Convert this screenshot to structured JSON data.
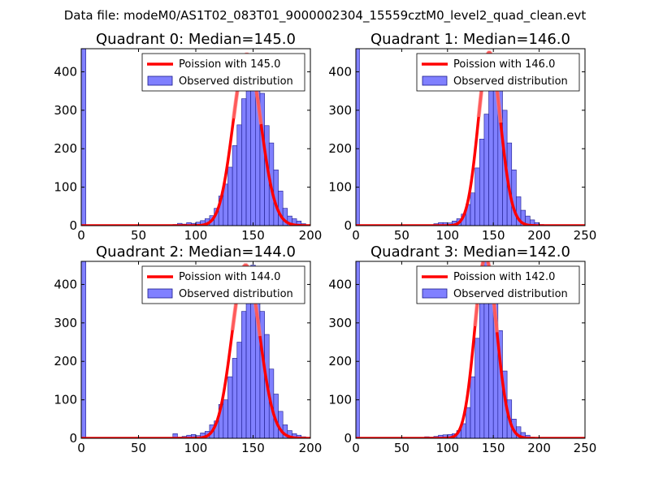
{
  "figure": {
    "suptitle": "Data file: modeM0/AS1T02_083T01_9000002304_15559cztM0_level2_quad_clean.evt"
  },
  "colors": {
    "bar_fill": "#8080ff",
    "bar_edge": "#1a1a8c",
    "curve": "#ff0000",
    "curve_peak_fade": "#ff8080",
    "frame": "#000000"
  },
  "chart_data": [
    {
      "type": "bar",
      "title": "Quadrant 0: Median=145.0",
      "xlim": [
        0,
        200
      ],
      "ylim": [
        0,
        460
      ],
      "xticks": [
        "0",
        "50",
        "100",
        "150",
        "200"
      ],
      "yticks": [
        "0",
        "100",
        "200",
        "300",
        "400"
      ],
      "legend": {
        "line": "Poission with 145.0",
        "bar": "Observed distribution",
        "location": "upper right"
      },
      "poisson_mean": 145,
      "curve_peak": 445,
      "spike": {
        "x": 0,
        "width": 4,
        "value": 460
      },
      "bin_width": 4,
      "bins": [
        [
          80,
          3
        ],
        [
          84,
          6
        ],
        [
          88,
          4
        ],
        [
          92,
          8
        ],
        [
          96,
          6
        ],
        [
          100,
          9
        ],
        [
          104,
          13
        ],
        [
          108,
          18
        ],
        [
          112,
          26
        ],
        [
          116,
          45
        ],
        [
          120,
          77
        ],
        [
          124,
          108
        ],
        [
          128,
          152
        ],
        [
          132,
          208
        ],
        [
          136,
          262
        ],
        [
          140,
          330
        ],
        [
          144,
          370
        ],
        [
          148,
          440
        ],
        [
          152,
          365
        ],
        [
          156,
          344
        ],
        [
          160,
          260
        ],
        [
          164,
          215
        ],
        [
          168,
          145
        ],
        [
          172,
          90
        ],
        [
          176,
          45
        ],
        [
          180,
          25
        ],
        [
          184,
          18
        ],
        [
          188,
          12
        ],
        [
          192,
          5
        ]
      ]
    },
    {
      "type": "bar",
      "title": "Quadrant 1: Median=146.0",
      "xlim": [
        0,
        250
      ],
      "ylim": [
        0,
        460
      ],
      "xticks": [
        "0",
        "50",
        "100",
        "150",
        "200",
        "250"
      ],
      "yticks": [
        "0",
        "100",
        "200",
        "300",
        "400"
      ],
      "legend": {
        "line": "Poission with 146.0",
        "bar": "Observed distribution",
        "location": "upper right"
      },
      "poisson_mean": 146,
      "curve_peak": 450,
      "spike": {
        "x": 0,
        "width": 4,
        "value": 460
      },
      "bin_width": 5,
      "bins": [
        [
          85,
          5
        ],
        [
          90,
          8
        ],
        [
          95,
          8
        ],
        [
          100,
          7
        ],
        [
          105,
          12
        ],
        [
          110,
          18
        ],
        [
          115,
          30
        ],
        [
          120,
          55
        ],
        [
          125,
          85
        ],
        [
          130,
          150
        ],
        [
          135,
          225
        ],
        [
          140,
          290
        ],
        [
          145,
          380
        ],
        [
          150,
          430
        ],
        [
          155,
          390
        ],
        [
          160,
          300
        ],
        [
          165,
          215
        ],
        [
          170,
          145
        ],
        [
          175,
          75
        ],
        [
          180,
          40
        ],
        [
          185,
          25
        ],
        [
          190,
          15
        ],
        [
          195,
          8
        ],
        [
          200,
          3
        ]
      ]
    },
    {
      "type": "bar",
      "title": "Quadrant 2: Median=144.0",
      "xlim": [
        0,
        200
      ],
      "ylim": [
        0,
        460
      ],
      "xticks": [
        "0",
        "50",
        "100",
        "150",
        "200"
      ],
      "yticks": [
        "0",
        "100",
        "200",
        "300",
        "400"
      ],
      "legend": {
        "line": "Poission with 144.0",
        "bar": "Observed distribution",
        "location": "upper right"
      },
      "poisson_mean": 144,
      "curve_peak": 450,
      "spike": {
        "x": 0,
        "width": 4,
        "value": 460
      },
      "bin_width": 4,
      "bins": [
        [
          80,
          12
        ],
        [
          84,
          3
        ],
        [
          88,
          5
        ],
        [
          92,
          8
        ],
        [
          96,
          10
        ],
        [
          100,
          7
        ],
        [
          104,
          14
        ],
        [
          108,
          18
        ],
        [
          112,
          35
        ],
        [
          116,
          45
        ],
        [
          120,
          88
        ],
        [
          124,
          100
        ],
        [
          128,
          160
        ],
        [
          132,
          208
        ],
        [
          136,
          250
        ],
        [
          140,
          330
        ],
        [
          144,
          410
        ],
        [
          148,
          450
        ],
        [
          152,
          410
        ],
        [
          156,
          330
        ],
        [
          160,
          270
        ],
        [
          164,
          180
        ],
        [
          168,
          115
        ],
        [
          172,
          70
        ],
        [
          176,
          35
        ],
        [
          180,
          20
        ],
        [
          184,
          12
        ],
        [
          188,
          8
        ],
        [
          192,
          4
        ]
      ]
    },
    {
      "type": "bar",
      "title": "Quadrant 3: Median=142.0",
      "xlim": [
        0,
        250
      ],
      "ylim": [
        0,
        460
      ],
      "xticks": [
        "0",
        "50",
        "100",
        "150",
        "200",
        "250"
      ],
      "yticks": [
        "0",
        "100",
        "200",
        "300",
        "400"
      ],
      "legend": {
        "line": "Poission with 142.0",
        "bar": "Observed distribution",
        "location": "upper right"
      },
      "poisson_mean": 142,
      "curve_peak": 470,
      "spike": {
        "x": 0,
        "width": 4,
        "value": 460
      },
      "bin_width": 5,
      "bins": [
        [
          75,
          4
        ],
        [
          80,
          3
        ],
        [
          85,
          5
        ],
        [
          90,
          8
        ],
        [
          95,
          9
        ],
        [
          100,
          10
        ],
        [
          105,
          12
        ],
        [
          110,
          20
        ],
        [
          115,
          38
        ],
        [
          120,
          80
        ],
        [
          125,
          160
        ],
        [
          130,
          260
        ],
        [
          135,
          360
        ],
        [
          140,
          460
        ],
        [
          145,
          430
        ],
        [
          150,
          355
        ],
        [
          155,
          280
        ],
        [
          160,
          175
        ],
        [
          165,
          100
        ],
        [
          170,
          50
        ],
        [
          175,
          30
        ],
        [
          180,
          15
        ],
        [
          185,
          8
        ],
        [
          190,
          3
        ]
      ]
    }
  ]
}
